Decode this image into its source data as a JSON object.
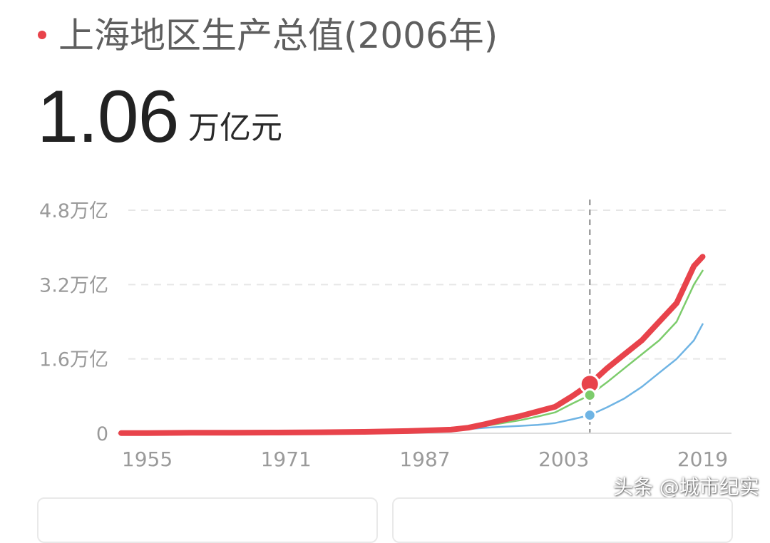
{
  "header": {
    "title": "上海地区生产总值(2006年)",
    "value": "1.06",
    "unit": "万亿元",
    "accent_color": "#e8434b"
  },
  "watermark": "头条 @城市纪实",
  "chart_data": {
    "type": "line",
    "title": "",
    "xlabel": "",
    "ylabel": "",
    "ylim": [
      0,
      4.8
    ],
    "xlim": [
      1952,
      2022
    ],
    "y_ticks": [
      {
        "value": 0,
        "label": "0"
      },
      {
        "value": 1.6,
        "label": "1.6万亿"
      },
      {
        "value": 3.2,
        "label": "3.2万亿"
      },
      {
        "value": 4.8,
        "label": "4.8万亿"
      }
    ],
    "x_ticks": [
      {
        "value": 1955,
        "label": "1955"
      },
      {
        "value": 1971,
        "label": "1971"
      },
      {
        "value": 1987,
        "label": "1987"
      },
      {
        "value": 2003,
        "label": "2003"
      },
      {
        "value": 2019,
        "label": "2019"
      }
    ],
    "grid": true,
    "highlight_year": 2006,
    "series": [
      {
        "color": "#e8434b",
        "x": [
          1952,
          1955,
          1960,
          1965,
          1970,
          1975,
          1978,
          1980,
          1985,
          1988,
          1990,
          1992,
          1994,
          1996,
          1998,
          2000,
          2002,
          2004,
          2006,
          2008,
          2010,
          2012,
          2014,
          2016,
          2018,
          2019
        ],
        "values": [
          0.003,
          0.005,
          0.01,
          0.01,
          0.016,
          0.021,
          0.027,
          0.031,
          0.047,
          0.065,
          0.078,
          0.12,
          0.2,
          0.29,
          0.37,
          0.47,
          0.57,
          0.8,
          1.06,
          1.4,
          1.7,
          2.0,
          2.4,
          2.8,
          3.6,
          3.8
        ]
      },
      {
        "color": "#7dcc6c",
        "x": [
          1988,
          1990,
          1992,
          1994,
          1996,
          1998,
          2000,
          2002,
          2004,
          2006,
          2008,
          2010,
          2012,
          2014,
          2016,
          2018,
          2019
        ],
        "values": [
          0.06,
          0.07,
          0.1,
          0.16,
          0.22,
          0.28,
          0.36,
          0.45,
          0.64,
          0.82,
          1.1,
          1.4,
          1.7,
          2.0,
          2.4,
          3.2,
          3.5
        ]
      },
      {
        "color": "#6fb4e4",
        "x": [
          1988,
          1990,
          1992,
          1994,
          1996,
          1998,
          2000,
          2002,
          2004,
          2006,
          2008,
          2010,
          2012,
          2014,
          2016,
          2018,
          2019
        ],
        "values": [
          0.05,
          0.06,
          0.09,
          0.12,
          0.14,
          0.16,
          0.18,
          0.22,
          0.3,
          0.39,
          0.56,
          0.75,
          1.0,
          1.3,
          1.6,
          2.0,
          2.35
        ]
      }
    ],
    "highlight_points": [
      {
        "series": 0,
        "x": 2006,
        "value": 1.06
      },
      {
        "series": 1,
        "x": 2006,
        "value": 0.82
      },
      {
        "series": 2,
        "x": 2006,
        "value": 0.39
      }
    ]
  }
}
